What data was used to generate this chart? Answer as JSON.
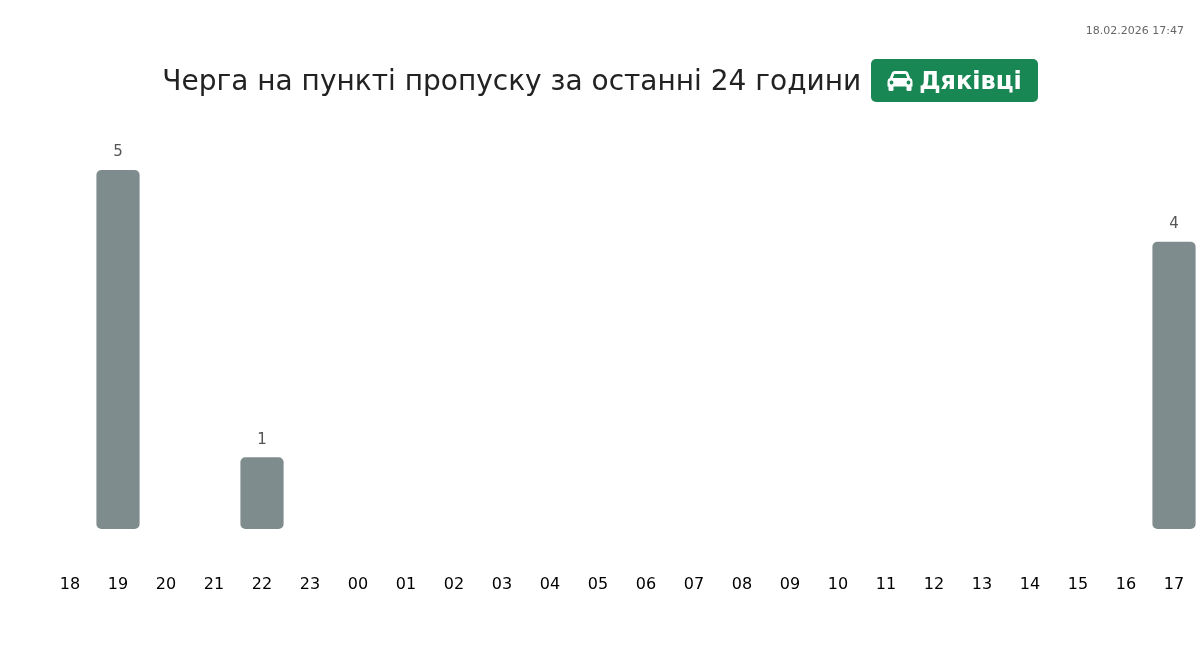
{
  "chart_data": {
    "type": "bar",
    "title": "Черга на пункті пропуску за останні 24 години",
    "subtitle": "Дяківці",
    "categories": [
      "18",
      "19",
      "20",
      "21",
      "22",
      "23",
      "00",
      "01",
      "02",
      "03",
      "04",
      "05",
      "06",
      "07",
      "08",
      "09",
      "10",
      "11",
      "12",
      "13",
      "14",
      "15",
      "16",
      "17"
    ],
    "values": [
      0,
      5,
      0,
      0,
      1,
      0,
      0,
      0,
      0,
      0,
      0,
      0,
      0,
      0,
      0,
      0,
      0,
      0,
      0,
      0,
      0,
      0,
      0,
      4
    ],
    "value_labels": [
      null,
      "5",
      null,
      null,
      "1",
      null,
      null,
      null,
      null,
      null,
      null,
      null,
      null,
      null,
      null,
      null,
      null,
      null,
      null,
      null,
      null,
      null,
      null,
      "4"
    ],
    "color": "#7f8c8d",
    "annotations": [
      "18.02.2026 17:47"
    ]
  }
}
